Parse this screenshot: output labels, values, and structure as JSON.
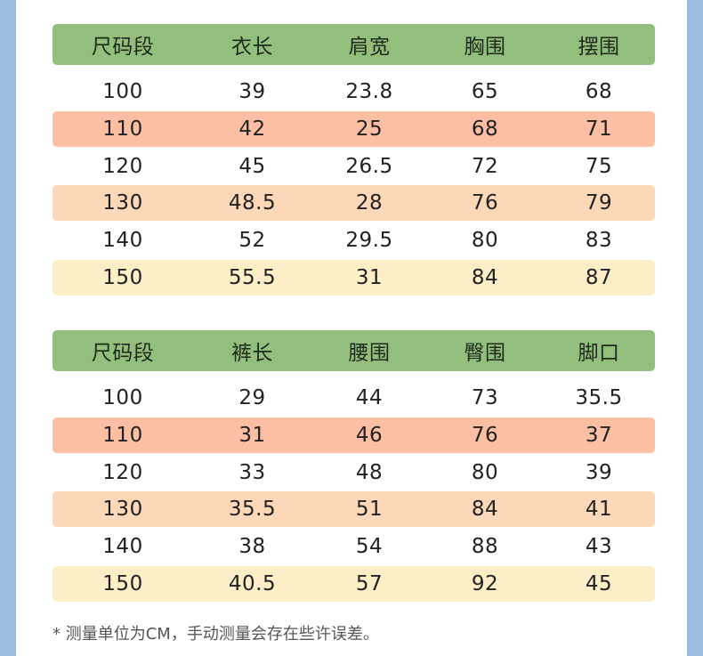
{
  "colors": {
    "background": "#9bbbdf",
    "header": "#93bf7d",
    "row_110": "#fdbfa4",
    "row_130": "#fdd8b8",
    "row_150": "#fdeec8"
  },
  "top_table": {
    "headers": [
      "尺码段",
      "衣长",
      "肩宽",
      "胸围",
      "摆围"
    ],
    "rows": [
      [
        "100",
        "39",
        "23.8",
        "65",
        "68"
      ],
      [
        "110",
        "42",
        "25",
        "68",
        "71"
      ],
      [
        "120",
        "45",
        "26.5",
        "72",
        "75"
      ],
      [
        "130",
        "48.5",
        "28",
        "76",
        "79"
      ],
      [
        "140",
        "52",
        "29.5",
        "80",
        "83"
      ],
      [
        "150",
        "55.5",
        "31",
        "84",
        "87"
      ]
    ]
  },
  "bottom_table": {
    "headers": [
      "尺码段",
      "裤长",
      "腰围",
      "臀围",
      "脚口"
    ],
    "rows": [
      [
        "100",
        "29",
        "44",
        "73",
        "35.5"
      ],
      [
        "110",
        "31",
        "46",
        "76",
        "37"
      ],
      [
        "120",
        "33",
        "48",
        "80",
        "39"
      ],
      [
        "130",
        "35.5",
        "51",
        "84",
        "41"
      ],
      [
        "140",
        "38",
        "54",
        "88",
        "43"
      ],
      [
        "150",
        "40.5",
        "57",
        "92",
        "45"
      ]
    ]
  },
  "footnote": "* 测量单位为CM，手动测量会存在些许误差。"
}
